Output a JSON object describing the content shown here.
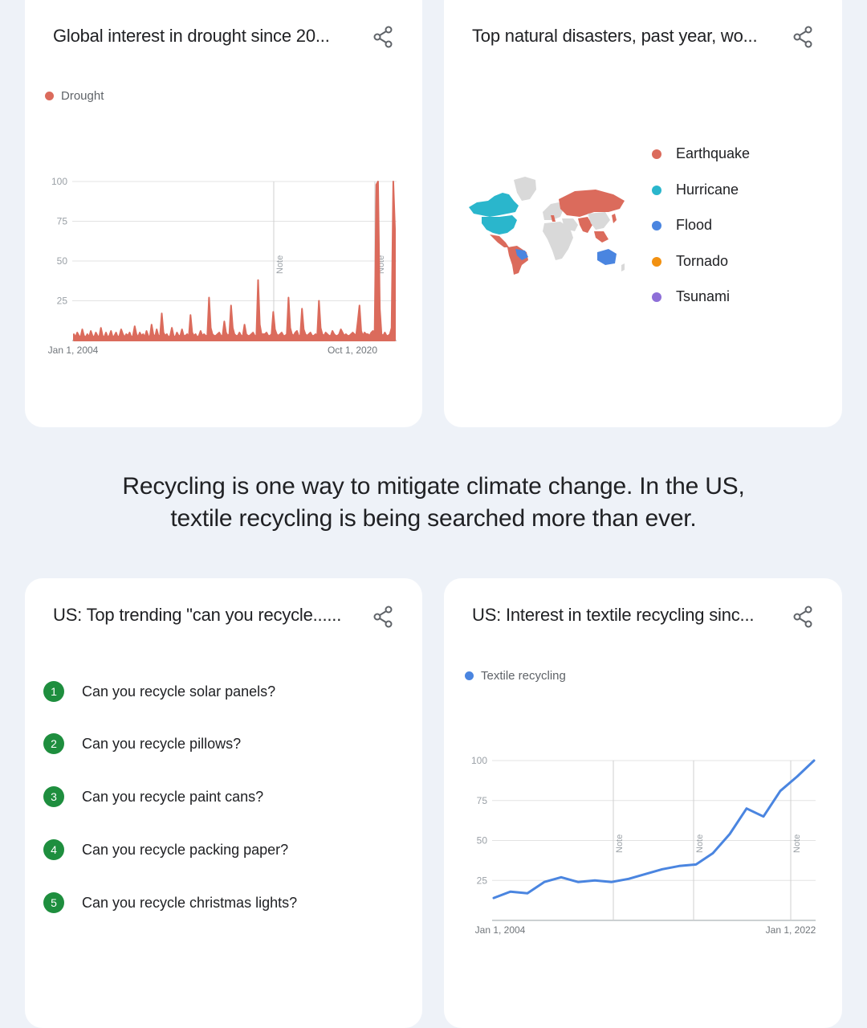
{
  "colors": {
    "drought": "#db6b5c",
    "textile": "#4a85e0",
    "earthquake": "#db6b5c",
    "hurricane": "#2ab6cc",
    "flood": "#4a85e0",
    "tornado": "#f29111",
    "tsunami": "#8e6fd8",
    "rank_badge": "#1e8e3e"
  },
  "cards": {
    "drought": {
      "title": "Global interest in drought since 20...",
      "share_icon": "share-icon",
      "legend": "Drought"
    },
    "disasters": {
      "title": "Top natural disasters, past year, wo...",
      "share_icon": "share-icon",
      "legend": [
        "Earthquake",
        "Hurricane",
        "Flood",
        "Tornado",
        "Tsunami"
      ]
    },
    "recycle": {
      "title": "US: Top trending \"can you recycle......",
      "share_icon": "share-icon",
      "items": [
        {
          "rank": "1",
          "label": "Can you recycle solar panels?"
        },
        {
          "rank": "2",
          "label": "Can you recycle pillows?"
        },
        {
          "rank": "3",
          "label": "Can you recycle paint cans?"
        },
        {
          "rank": "4",
          "label": "Can you recycle packing paper?"
        },
        {
          "rank": "5",
          "label": "Can you recycle christmas lights?"
        }
      ]
    },
    "textile": {
      "title": "US: Interest in textile recycling sinc...",
      "share_icon": "share-icon",
      "legend": "Textile recycling"
    }
  },
  "headline": {
    "line1": "Recycling is one way to mitigate climate change. In the US,",
    "line2": "textile recycling is being searched more than ever."
  },
  "chart_data": [
    {
      "type": "line",
      "title": "Global interest in drought since 20...",
      "series": [
        {
          "name": "Drought",
          "values": [
            4,
            2,
            5,
            3,
            2,
            7,
            3,
            2,
            4,
            2,
            6,
            3,
            2,
            5,
            3,
            2,
            8,
            3,
            2,
            5,
            2,
            3,
            6,
            2,
            3,
            5,
            2,
            3,
            7,
            4,
            2,
            4,
            3,
            5,
            2,
            3,
            9,
            4,
            2,
            5,
            3,
            4,
            2,
            6,
            3,
            2,
            10,
            4,
            2,
            7,
            3,
            3,
            17,
            5,
            3,
            4,
            2,
            3,
            8,
            3,
            2,
            5,
            3,
            3,
            7,
            3,
            3,
            4,
            2,
            16,
            5,
            3,
            4,
            2,
            3,
            6,
            3,
            4,
            3,
            3,
            27,
            8,
            4,
            3,
            3,
            4,
            5,
            3,
            3,
            12,
            5,
            3,
            4,
            22,
            8,
            4,
            3,
            3,
            5,
            3,
            3,
            10,
            4,
            3,
            3,
            4,
            5,
            3,
            3,
            38,
            10,
            4,
            4,
            4,
            5,
            3,
            3,
            4,
            18,
            7,
            4,
            3,
            4,
            5,
            3,
            3,
            4,
            27,
            8,
            4,
            3,
            5,
            6,
            3,
            3,
            20,
            7,
            4,
            3,
            4,
            5,
            3,
            3,
            4,
            3,
            25,
            8,
            4,
            3,
            5,
            4,
            3,
            3,
            6,
            4,
            3,
            3,
            4,
            7,
            5,
            3,
            4,
            3,
            3,
            4,
            5,
            4,
            3,
            12,
            22,
            6,
            3,
            5,
            4,
            4,
            3,
            5,
            6,
            5,
            98,
            100,
            20,
            4,
            3,
            5,
            3,
            3,
            4,
            8,
            100,
            70
          ]
        }
      ],
      "x_tick_labels": [
        "Jan 1, 2004",
        "Oct 1, 2020"
      ],
      "y_ticks": [
        25,
        50,
        75,
        100
      ],
      "ylim": [
        0,
        100
      ],
      "annotations": [
        "Note",
        "Note"
      ],
      "grid": true,
      "legend_position": "top-left"
    },
    {
      "type": "line",
      "title": "US: Interest in textile recycling sinc...",
      "series": [
        {
          "name": "Textile recycling",
          "values": [
            14,
            18,
            17,
            24,
            27,
            24,
            25,
            24,
            26,
            29,
            32,
            34,
            35,
            42,
            54,
            70,
            65,
            81,
            90,
            100
          ]
        }
      ],
      "x_tick_labels": [
        "Jan 1, 2004",
        "Jan 1, 2022"
      ],
      "y_ticks": [
        25,
        50,
        75,
        100
      ],
      "ylim": [
        0,
        100
      ],
      "annotations": [
        "Note",
        "Note",
        "Note"
      ],
      "grid": true,
      "legend_position": "top-left"
    }
  ]
}
